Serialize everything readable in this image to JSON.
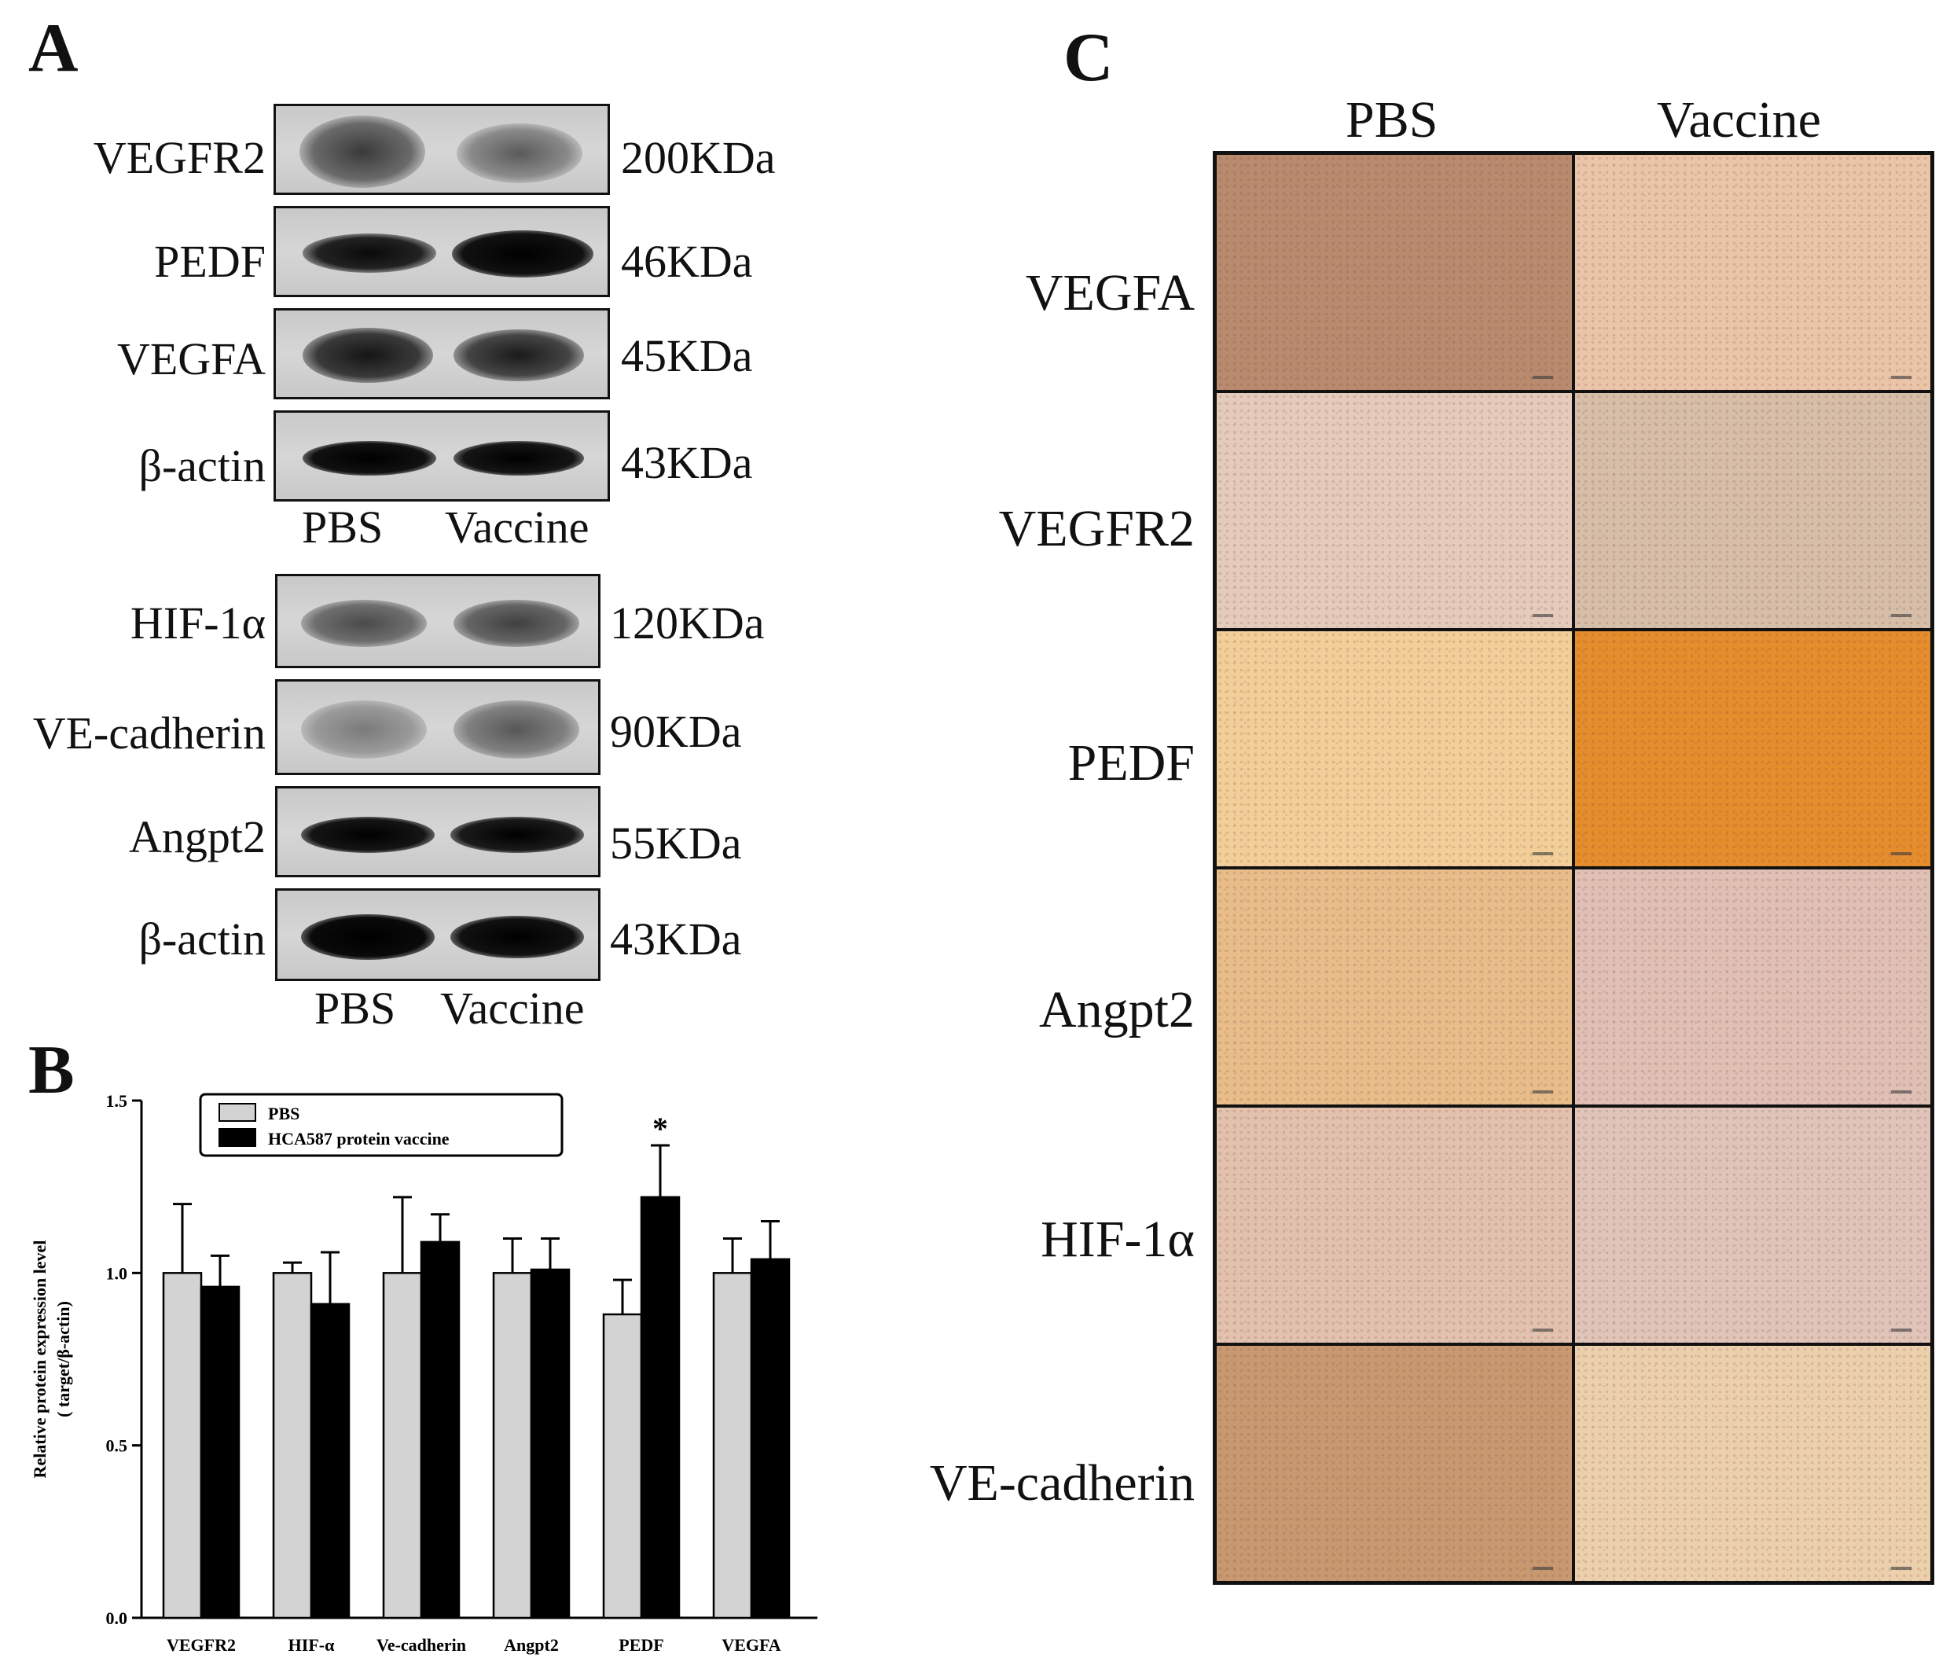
{
  "panels": {
    "a": "A",
    "b": "B",
    "c": "C"
  },
  "western_blot": {
    "group1": {
      "rows": [
        {
          "protein": "VEGFR2",
          "size": "200KDa"
        },
        {
          "protein": "PEDF",
          "size": "46KDa"
        },
        {
          "protein": "VEGFA",
          "size": "45KDa"
        },
        {
          "protein": "β-actin",
          "size": "43KDa"
        }
      ],
      "lanes": [
        "PBS",
        "Vaccine"
      ]
    },
    "group2": {
      "rows": [
        {
          "protein": "HIF-1α",
          "size": "120KDa"
        },
        {
          "protein": "VE-cadherin",
          "size": "90KDa"
        },
        {
          "protein": "Angpt2",
          "size": "55KDa"
        },
        {
          "protein": "β-actin",
          "size": "43KDa"
        }
      ],
      "lanes": [
        "PBS",
        "Vaccine"
      ]
    }
  },
  "ihc": {
    "columns": [
      "PBS",
      "Vaccine"
    ],
    "rows": [
      {
        "marker": "VEGFA",
        "colors": [
          "#b88a6e",
          "#ebc5a8"
        ]
      },
      {
        "marker": "VEGFR2",
        "colors": [
          "#e5cbbc",
          "#d6bea8"
        ]
      },
      {
        "marker": "PEDF",
        "colors": [
          "#f2cf98",
          "#e58c2c"
        ]
      },
      {
        "marker": "Angpt2",
        "colors": [
          "#e8bd8a",
          "#e0bfb4"
        ]
      },
      {
        "marker": "HIF-1α",
        "colors": [
          "#e2c2ae",
          "#e0c4ba"
        ]
      },
      {
        "marker": "VE-cadherin",
        "colors": [
          "#c89870",
          "#ecd0ac"
        ]
      }
    ]
  },
  "chart_data": {
    "type": "bar",
    "categories": [
      "VEGFR2",
      "HIF-α",
      "Ve-cadherin",
      "Angpt2",
      "PEDF",
      "VEGFA"
    ],
    "series": [
      {
        "name": "PBS",
        "color": "#d3d3d3",
        "values": [
          1.0,
          1.0,
          1.0,
          1.0,
          0.88,
          1.0
        ],
        "errors": [
          0.2,
          0.03,
          0.22,
          0.1,
          0.1,
          0.1
        ]
      },
      {
        "name": "HCA587 protein vaccine",
        "color": "#000000",
        "values": [
          0.96,
          0.91,
          1.09,
          1.01,
          1.22,
          1.04
        ],
        "errors": [
          0.09,
          0.15,
          0.08,
          0.09,
          0.15,
          0.11
        ]
      }
    ],
    "ylabel_line1": "Relative protein expression level",
    "ylabel_line2": "( target/β-actin)",
    "ylim": [
      0,
      1.5
    ],
    "yticks": [
      "0.0",
      "0.5",
      "1.0",
      "1.5"
    ],
    "ytick_values": [
      0,
      0.5,
      1.0,
      1.5
    ],
    "significance": {
      "category": "PEDF",
      "series": "HCA587 protein vaccine",
      "mark": "*"
    },
    "legend_position": "top-center"
  }
}
